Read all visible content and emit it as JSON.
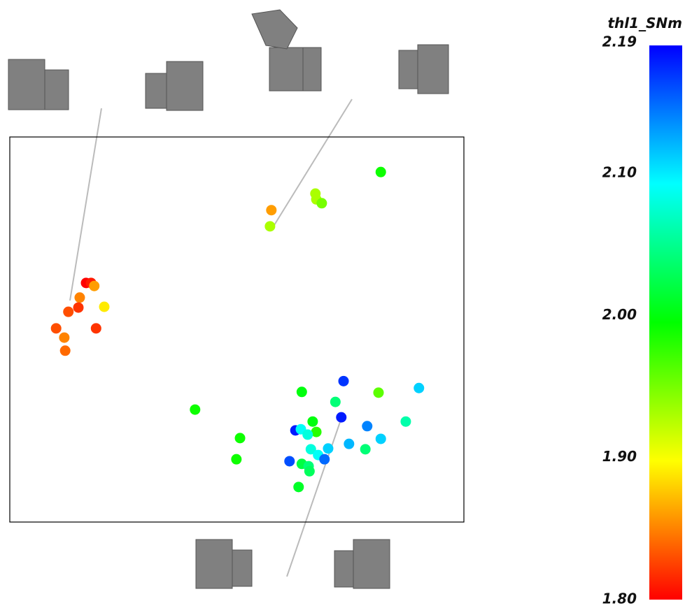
{
  "chart_data": {
    "type": "scatter",
    "colorbar_title": "thl1_SNm",
    "x": [
      81.7,
      67.3,
      67.5,
      68.7,
      57.6,
      57.3,
      16.8,
      17.9,
      18.6,
      15.4,
      20.8,
      15.1,
      12.9,
      10.2,
      19.0,
      12.0,
      12.2,
      73.5,
      90.1,
      64.3,
      81.2,
      71.7,
      40.8,
      73.0,
      66.7,
      87.2,
      78.7,
      62.9,
      64.1,
      67.5,
      65.6,
      50.7,
      81.7,
      74.7,
      66.3,
      70.1,
      78.3,
      49.9,
      67.9,
      69.3,
      61.6,
      64.3,
      65.8,
      66.0,
      63.6
    ],
    "y": [
      90.9,
      85.3,
      83.8,
      82.8,
      81.0,
      76.8,
      62.1,
      62.1,
      61.3,
      58.3,
      55.9,
      55.7,
      54.6,
      50.3,
      50.3,
      47.9,
      44.5,
      36.6,
      34.8,
      33.8,
      33.6,
      31.2,
      29.2,
      27.2,
      26.1,
      26.1,
      24.9,
      23.8,
      24.1,
      23.4,
      22.7,
      21.8,
      21.6,
      20.3,
      18.9,
      19.1,
      18.9,
      16.3,
      17.4,
      16.3,
      15.8,
      15.1,
      14.5,
      13.2,
      9.1
    ],
    "values": [
      1.99,
      1.93,
      1.93,
      1.95,
      1.86,
      1.93,
      1.8,
      1.81,
      1.86,
      1.85,
      1.89,
      1.82,
      1.83,
      1.83,
      1.82,
      1.85,
      1.84,
      2.17,
      2.11,
      2.0,
      1.96,
      2.04,
      1.99,
      2.18,
      2.0,
      2.06,
      2.14,
      2.18,
      2.09,
      1.98,
      2.08,
      1.99,
      2.11,
      2.12,
      2.08,
      2.11,
      2.04,
      1.99,
      2.09,
      2.15,
      2.16,
      2.02,
      2.04,
      2.03,
      2.01
    ],
    "xlim": [
      0,
      100
    ],
    "ylim": [
      0,
      100
    ],
    "clim": [
      1.8,
      2.19
    ],
    "cticks": [
      2.19,
      {
        "value": 2.1,
        "label": "2.10"
      },
      {
        "value": 2.0,
        "label": "2.00"
      },
      {
        "value": 1.9,
        "label": "1.90"
      },
      {
        "value": 1.8,
        "label": "1.80"
      }
    ],
    "colormap": [
      "#ff0000",
      "#ffff00",
      "#00ff00",
      "#00ffff",
      "#0000ff"
    ]
  }
}
